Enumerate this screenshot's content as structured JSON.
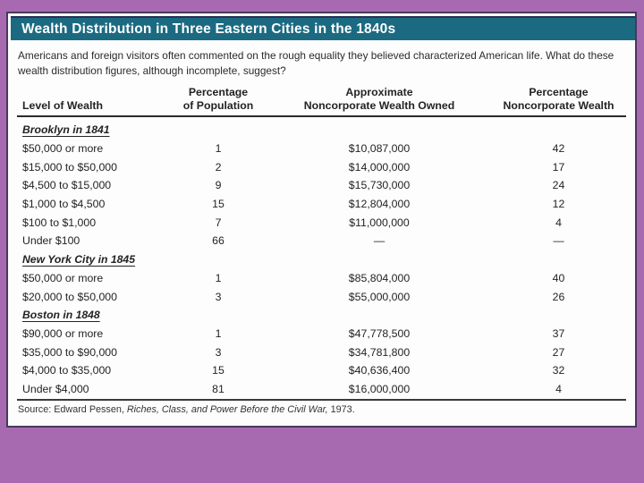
{
  "colors": {
    "background": "#a76ab1",
    "title_bar": "#1b6a81",
    "title_text": "#ffffff",
    "panel_border": "#46395a",
    "rule": "#2a2a2a"
  },
  "panel": {
    "title": "Wealth Distribution in Three Eastern Cities in the 1840s",
    "intro": "Americans and foreign visitors often commented on the rough equality they believed characterized American life. What do these wealth distribution figures, although incomplete, suggest?",
    "source": {
      "prefix": "Source: Edward Pessen, ",
      "italic": "Riches, Class, and Power Before the Civil War,",
      "suffix": " 1973."
    }
  },
  "table": {
    "headers": [
      {
        "line1": "",
        "line2": "Level of Wealth"
      },
      {
        "line1": "Percentage",
        "line2": "of Population"
      },
      {
        "line1": "Approximate",
        "line2": "Noncorporate Wealth Owned"
      },
      {
        "line1": "Percentage",
        "line2": "Noncorporate Wealth"
      }
    ],
    "sections": [
      {
        "label": "Brooklyn in 1841",
        "rows": [
          [
            "$50,000 or more",
            "1",
            "$10,087,000",
            "42"
          ],
          [
            "$15,000 to $50,000",
            "2",
            "$14,000,000",
            "17"
          ],
          [
            "$4,500 to $15,000",
            "9",
            "$15,730,000",
            "24"
          ],
          [
            "$1,000 to $4,500",
            "15",
            "$12,804,000",
            "12"
          ],
          [
            "$100 to $1,000",
            "7",
            "$11,000,000",
            "4"
          ],
          [
            "Under $100",
            "66",
            "—",
            "—"
          ]
        ]
      },
      {
        "label": "New York City in 1845",
        "rows": [
          [
            "$50,000 or more",
            "1",
            "$85,804,000",
            "40"
          ],
          [
            "$20,000 to $50,000",
            "3",
            "$55,000,000",
            "26"
          ]
        ]
      },
      {
        "label": "Boston in 1848",
        "rows": [
          [
            "$90,000 or more",
            "1",
            "$47,778,500",
            "37"
          ],
          [
            "$35,000 to $90,000",
            "3",
            "$34,781,800",
            "27"
          ],
          [
            "$4,000 to $35,000",
            "15",
            "$40,636,400",
            "32"
          ],
          [
            "Under $4,000",
            "81",
            "$16,000,000",
            "4"
          ]
        ]
      }
    ]
  }
}
